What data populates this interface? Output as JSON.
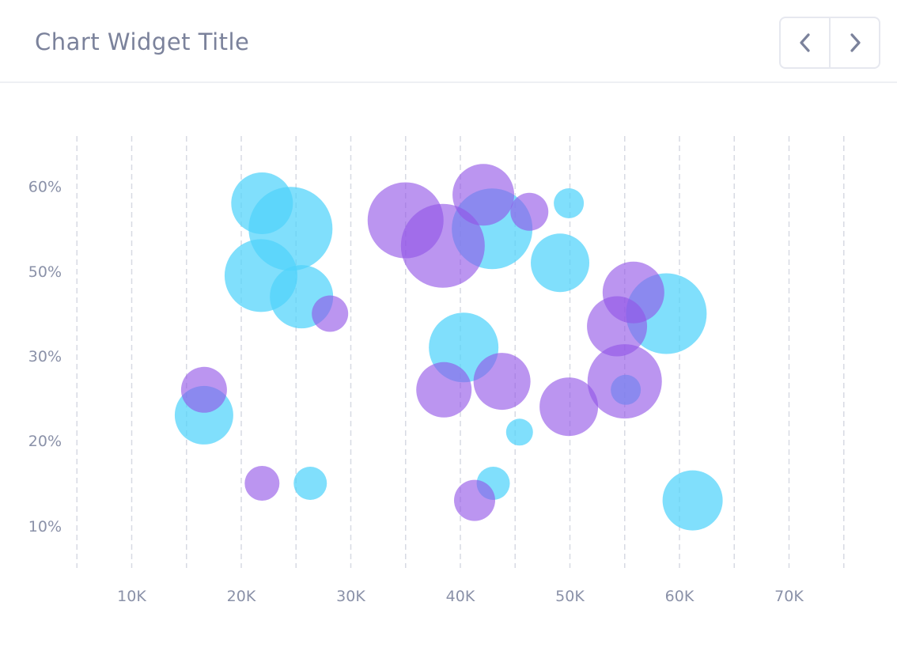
{
  "header": {
    "title": "Chart Widget Title",
    "prev_icon": "chevron-left-icon",
    "next_icon": "chevron-right-icon"
  },
  "colors": {
    "series_cyan": "#4fd3fb",
    "series_purple": "#9254e6",
    "grid": "#d7dae3",
    "tick_text": "#8a91a8"
  },
  "chart_data": {
    "type": "scatter",
    "title": "",
    "xlabel": "",
    "ylabel": "",
    "grid": "vertical dashed",
    "x_ticks": [
      "10K",
      "20K",
      "30K",
      "40K",
      "50K",
      "60K",
      "70K"
    ],
    "y_ticks": [
      "60%",
      "50%",
      "30%",
      "20%",
      "10%"
    ],
    "series": [
      {
        "color": "#4fd3fb",
        "points": [
          {
            "x": 21900,
            "y": 58,
            "r": 39
          },
          {
            "x": 24500,
            "y": 55,
            "r": 53
          },
          {
            "x": 21800,
            "y": 49,
            "r": 46
          },
          {
            "x": 25500,
            "y": 44,
            "r": 40
          },
          {
            "x": 16600,
            "y": 23,
            "r": 37
          },
          {
            "x": 26300,
            "y": 15,
            "r": 21
          },
          {
            "x": 42900,
            "y": 55,
            "r": 51
          },
          {
            "x": 49900,
            "y": 58,
            "r": 19
          },
          {
            "x": 49100,
            "y": 51,
            "r": 37
          },
          {
            "x": 40300,
            "y": 32,
            "r": 44
          },
          {
            "x": 45400,
            "y": 21,
            "r": 17
          },
          {
            "x": 43000,
            "y": 15,
            "r": 21
          },
          {
            "x": 58800,
            "y": 40,
            "r": 51
          },
          {
            "x": 55100,
            "y": 26,
            "r": 19
          },
          {
            "x": 61200,
            "y": 13,
            "r": 38
          }
        ]
      },
      {
        "color": "#9254e6",
        "points": [
          {
            "x": 16600,
            "y": 26,
            "r": 29
          },
          {
            "x": 28100,
            "y": 40,
            "r": 23
          },
          {
            "x": 21900,
            "y": 15,
            "r": 22
          },
          {
            "x": 35000,
            "y": 56,
            "r": 48
          },
          {
            "x": 38400,
            "y": 53,
            "r": 53
          },
          {
            "x": 42100,
            "y": 59,
            "r": 39
          },
          {
            "x": 46300,
            "y": 57,
            "r": 24
          },
          {
            "x": 38500,
            "y": 26,
            "r": 35
          },
          {
            "x": 43800,
            "y": 27,
            "r": 36
          },
          {
            "x": 41300,
            "y": 13,
            "r": 26
          },
          {
            "x": 49900,
            "y": 24,
            "r": 37
          },
          {
            "x": 55800,
            "y": 45,
            "r": 39
          },
          {
            "x": 54300,
            "y": 37,
            "r": 38
          },
          {
            "x": 55000,
            "y": 27,
            "r": 47
          }
        ]
      }
    ]
  }
}
